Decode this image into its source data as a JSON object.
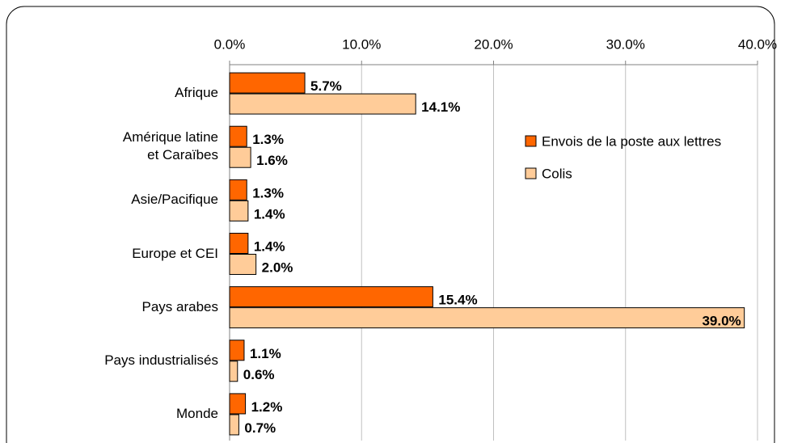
{
  "chart_data": {
    "type": "bar",
    "orientation": "horizontal",
    "categories": [
      "Afrique",
      "Amérique latine\net Caraïbes",
      "Asie/Pacifique",
      "Europe et CEI",
      "Pays arabes",
      "Pays industrialisés",
      "Monde"
    ],
    "series": [
      {
        "name": "Envois de la poste aux lettres",
        "color": "#ff6600",
        "values": [
          5.7,
          1.3,
          1.3,
          1.4,
          15.4,
          1.1,
          1.2
        ],
        "value_labels": [
          "5.7%",
          "1.3%",
          "1.3%",
          "1.4%",
          "15.4%",
          "1.1%",
          "1.2%"
        ]
      },
      {
        "name": "Colis",
        "color": "#ffcc99",
        "values": [
          14.1,
          1.6,
          1.4,
          2.0,
          39.0,
          0.6,
          0.7
        ],
        "value_labels": [
          "14.1%",
          "1.6%",
          "1.4%",
          "2.0%",
          "39.0%",
          "0.6%",
          "0.7%"
        ]
      }
    ],
    "xlim": [
      0,
      40
    ],
    "xticks": [
      {
        "value": 0,
        "label": "0.0%"
      },
      {
        "value": 10,
        "label": "10.0%"
      },
      {
        "value": 20,
        "label": "20.0%"
      },
      {
        "value": 30,
        "label": "30.0%"
      },
      {
        "value": 40,
        "label": "40.0%"
      }
    ],
    "grid": true,
    "legend": "right"
  }
}
